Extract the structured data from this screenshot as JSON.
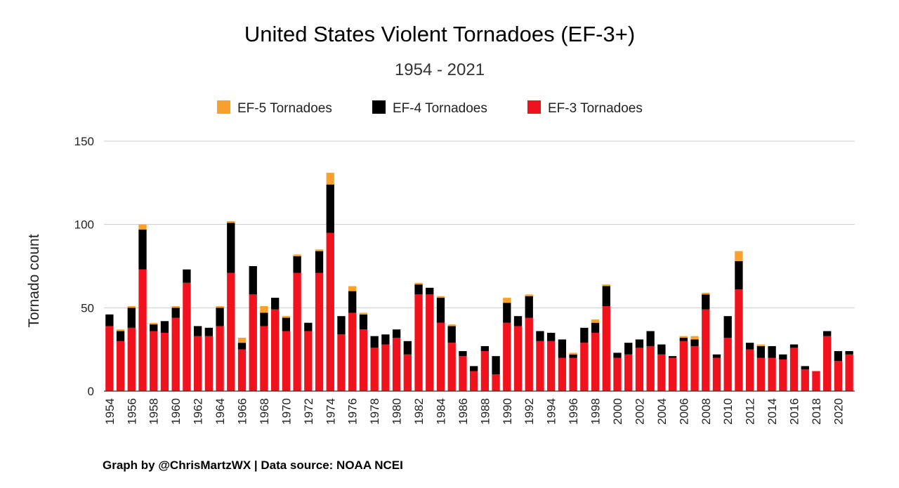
{
  "chart_data": {
    "type": "bar",
    "stacked": true,
    "title": "United States Violent Tornadoes (EF-3+)",
    "subtitle": "1954 - 2021",
    "ylabel": "Tornado count",
    "xlabel": "",
    "ylim": [
      0,
      150
    ],
    "yticks": [
      "0",
      "50",
      "100",
      "150"
    ],
    "grid": true,
    "legend_position": "top",
    "credit": "Graph by @ChrisMartzWX | Data source: NOAA NCEI",
    "categories": [
      "1954",
      "1955",
      "1956",
      "1957",
      "1958",
      "1959",
      "1960",
      "1961",
      "1962",
      "1963",
      "1964",
      "1965",
      "1966",
      "1967",
      "1968",
      "1969",
      "1970",
      "1971",
      "1972",
      "1973",
      "1974",
      "1975",
      "1976",
      "1977",
      "1978",
      "1979",
      "1980",
      "1981",
      "1982",
      "1983",
      "1984",
      "1985",
      "1986",
      "1987",
      "1988",
      "1989",
      "1990",
      "1991",
      "1992",
      "1993",
      "1994",
      "1995",
      "1996",
      "1997",
      "1998",
      "1999",
      "2000",
      "2001",
      "2002",
      "2003",
      "2004",
      "2005",
      "2006",
      "2007",
      "2008",
      "2009",
      "2010",
      "2011",
      "2012",
      "2013",
      "2014",
      "2015",
      "2016",
      "2017",
      "2018",
      "2019",
      "2020",
      "2021"
    ],
    "xtick_labels": [
      "1954",
      "",
      "1956",
      "",
      "1958",
      "",
      "1960",
      "",
      "1962",
      "",
      "1964",
      "",
      "1966",
      "",
      "1968",
      "",
      "1970",
      "",
      "1972",
      "",
      "1974",
      "",
      "1976",
      "",
      "1978",
      "",
      "1980",
      "",
      "1982",
      "",
      "1984",
      "",
      "1986",
      "",
      "1988",
      "",
      "1990",
      "",
      "1992",
      "",
      "1994",
      "",
      "1996",
      "",
      "1998",
      "",
      "2000",
      "",
      "2002",
      "",
      "2004",
      "",
      "2006",
      "",
      "2008",
      "",
      "2010",
      "",
      "2012",
      "",
      "2014",
      "",
      "2016",
      "",
      "2018",
      "",
      "2020",
      ""
    ],
    "series": [
      {
        "name": "EF-3 Tornadoes",
        "color": "#f0121c",
        "values": [
          39,
          30,
          38,
          73,
          36,
          35,
          44,
          65,
          33,
          33,
          39,
          71,
          25,
          58,
          39,
          49,
          36,
          71,
          36,
          71,
          95,
          34,
          47,
          37,
          26,
          28,
          32,
          22,
          58,
          58,
          41,
          29,
          21,
          12,
          24,
          10,
          41,
          39,
          44,
          30,
          30,
          20,
          20,
          29,
          35,
          51,
          20,
          22,
          26,
          27,
          22,
          20,
          30,
          27,
          49,
          20,
          32,
          61,
          25,
          20,
          20,
          19,
          26,
          13,
          12,
          33,
          18,
          22
        ]
      },
      {
        "name": "EF-4 Tornadoes",
        "color": "#000000",
        "values": [
          7,
          6,
          12,
          24,
          4,
          7,
          6,
          8,
          6,
          5,
          11,
          30,
          4,
          17,
          8,
          7,
          8,
          10,
          5,
          13,
          29,
          11,
          13,
          9,
          7,
          6,
          5,
          8,
          6,
          4,
          15,
          10,
          3,
          3,
          3,
          11,
          12,
          6,
          13,
          6,
          5,
          11,
          2,
          9,
          6,
          12,
          3,
          7,
          5,
          9,
          6,
          1,
          2,
          4,
          9,
          2,
          13,
          17,
          4,
          7,
          7,
          3,
          2,
          2,
          0,
          3,
          6,
          2
        ]
      },
      {
        "name": "EF-5 Tornadoes",
        "color": "#f9a12c",
        "values": [
          0,
          1,
          1,
          3,
          1,
          0,
          1,
          0,
          0,
          0,
          1,
          1,
          3,
          0,
          4,
          0,
          1,
          1,
          0,
          1,
          7,
          0,
          3,
          1,
          0,
          0,
          0,
          0,
          1,
          0,
          1,
          1,
          0,
          0,
          0,
          0,
          3,
          0,
          1,
          0,
          0,
          0,
          1,
          0,
          2,
          1,
          0,
          0,
          0,
          0,
          0,
          0,
          1,
          2,
          1,
          0,
          0,
          6,
          0,
          1,
          0,
          0,
          0,
          0,
          0,
          0,
          0,
          0
        ]
      }
    ]
  }
}
